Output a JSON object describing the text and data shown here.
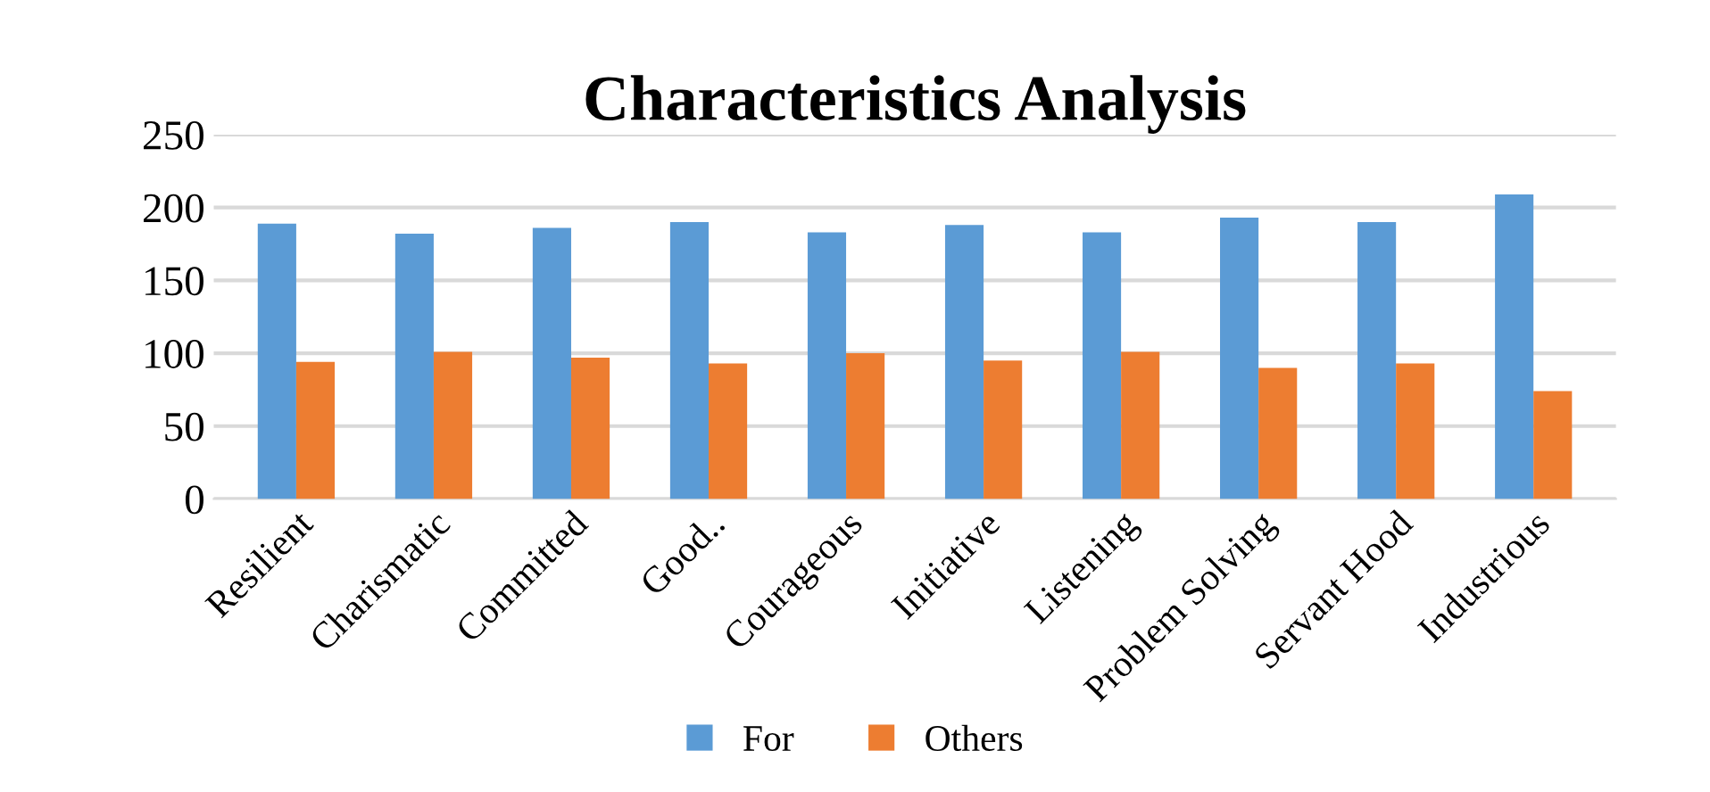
{
  "chart_data": {
    "type": "bar",
    "title": "Characteristics Analysis",
    "categories": [
      "Resilient",
      "Charismatic",
      "Committed",
      "Good..",
      "Courageous",
      "Initiative",
      "Listening",
      "Problem Solving",
      "Servant Hood",
      "Industrious"
    ],
    "series": [
      {
        "name": "For",
        "color": "#5b9bd5",
        "values": [
          189,
          182,
          186,
          190,
          183,
          188,
          183,
          193,
          190,
          209
        ]
      },
      {
        "name": "Others",
        "color": "#ed7d31",
        "values": [
          94,
          101,
          97,
          93,
          100,
          95,
          101,
          90,
          93,
          74
        ]
      }
    ],
    "ylim": [
      0,
      250
    ],
    "yticks": [
      0,
      50,
      100,
      150,
      200,
      250
    ],
    "grid": "y",
    "legend": "bottom"
  }
}
